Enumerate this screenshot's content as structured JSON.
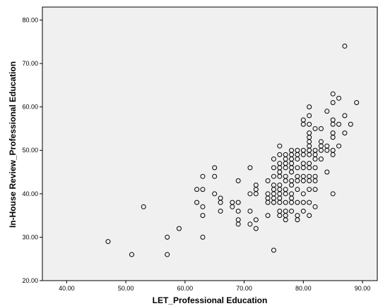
{
  "chart_data": {
    "type": "scatter",
    "title": "",
    "xlabel": "LET_Professional Education",
    "ylabel": "In-House Review_Professional Education",
    "xlim": [
      35.9,
      92.5
    ],
    "ylim": [
      20.0,
      83.0
    ],
    "xticks": [
      "40.00",
      "50.00",
      "60.00",
      "70.00",
      "80.00",
      "90.00"
    ],
    "yticks": [
      "20.00",
      "30.00",
      "40.00",
      "50.00",
      "60.00",
      "70.00",
      "80.00"
    ],
    "grid": false,
    "marker": "open-circle",
    "points": [
      [
        47,
        29
      ],
      [
        51,
        26
      ],
      [
        53,
        37
      ],
      [
        57,
        30
      ],
      [
        57,
        26
      ],
      [
        59,
        32
      ],
      [
        62,
        41
      ],
      [
        62,
        38
      ],
      [
        63,
        44
      ],
      [
        63,
        41
      ],
      [
        63,
        37
      ],
      [
        63,
        35
      ],
      [
        63,
        30
      ],
      [
        65,
        46
      ],
      [
        65,
        44
      ],
      [
        65,
        40
      ],
      [
        66,
        39
      ],
      [
        66,
        38
      ],
      [
        66,
        36
      ],
      [
        68,
        38
      ],
      [
        68,
        37
      ],
      [
        69,
        43
      ],
      [
        69,
        38
      ],
      [
        69,
        36
      ],
      [
        69,
        34
      ],
      [
        69,
        33
      ],
      [
        71,
        46
      ],
      [
        71,
        40
      ],
      [
        71,
        36
      ],
      [
        71,
        33
      ],
      [
        72,
        42
      ],
      [
        72,
        41
      ],
      [
        72,
        40
      ],
      [
        72,
        34
      ],
      [
        72,
        32
      ],
      [
        74,
        43
      ],
      [
        74,
        40
      ],
      [
        74,
        39
      ],
      [
        74,
        38
      ],
      [
        74,
        35
      ],
      [
        75,
        48
      ],
      [
        75,
        46
      ],
      [
        75,
        44
      ],
      [
        75,
        42
      ],
      [
        75,
        41
      ],
      [
        75,
        40
      ],
      [
        75,
        39
      ],
      [
        75,
        38
      ],
      [
        75,
        27
      ],
      [
        76,
        51
      ],
      [
        76,
        49
      ],
      [
        76,
        47
      ],
      [
        76,
        46
      ],
      [
        76,
        45
      ],
      [
        76,
        44
      ],
      [
        76,
        42
      ],
      [
        76,
        41
      ],
      [
        76,
        40
      ],
      [
        76,
        39
      ],
      [
        76,
        38
      ],
      [
        76,
        36
      ],
      [
        76,
        35
      ],
      [
        77,
        49
      ],
      [
        77,
        48
      ],
      [
        77,
        47
      ],
      [
        77,
        46
      ],
      [
        77,
        44
      ],
      [
        77,
        43
      ],
      [
        77,
        41
      ],
      [
        77,
        40
      ],
      [
        77,
        38
      ],
      [
        77,
        36
      ],
      [
        77,
        35
      ],
      [
        77,
        34
      ],
      [
        78,
        50
      ],
      [
        78,
        49
      ],
      [
        78,
        48
      ],
      [
        78,
        47
      ],
      [
        78,
        46
      ],
      [
        78,
        45
      ],
      [
        78,
        43
      ],
      [
        78,
        42
      ],
      [
        78,
        40
      ],
      [
        78,
        39
      ],
      [
        78,
        38
      ],
      [
        78,
        36
      ],
      [
        79,
        50
      ],
      [
        79,
        49
      ],
      [
        79,
        48
      ],
      [
        79,
        46
      ],
      [
        79,
        44
      ],
      [
        79,
        43
      ],
      [
        79,
        41
      ],
      [
        79,
        38
      ],
      [
        79,
        35
      ],
      [
        79,
        34
      ],
      [
        80,
        57
      ],
      [
        80,
        56
      ],
      [
        80,
        50
      ],
      [
        80,
        49
      ],
      [
        80,
        47
      ],
      [
        80,
        46
      ],
      [
        80,
        44
      ],
      [
        80,
        43
      ],
      [
        80,
        40
      ],
      [
        80,
        38
      ],
      [
        80,
        36
      ],
      [
        81,
        60
      ],
      [
        81,
        58
      ],
      [
        81,
        56
      ],
      [
        81,
        54
      ],
      [
        81,
        53
      ],
      [
        81,
        52
      ],
      [
        81,
        51
      ],
      [
        81,
        50
      ],
      [
        81,
        49
      ],
      [
        81,
        47
      ],
      [
        81,
        46
      ],
      [
        81,
        44
      ],
      [
        81,
        43
      ],
      [
        81,
        41
      ],
      [
        81,
        38
      ],
      [
        81,
        35
      ],
      [
        82,
        55
      ],
      [
        82,
        50
      ],
      [
        82,
        49
      ],
      [
        82,
        48
      ],
      [
        82,
        46
      ],
      [
        82,
        44
      ],
      [
        82,
        43
      ],
      [
        82,
        41
      ],
      [
        82,
        37
      ],
      [
        83,
        55
      ],
      [
        83,
        52
      ],
      [
        83,
        51
      ],
      [
        83,
        50
      ],
      [
        83,
        48
      ],
      [
        84,
        59
      ],
      [
        84,
        51
      ],
      [
        84,
        50
      ],
      [
        84,
        45
      ],
      [
        85,
        63
      ],
      [
        85,
        61
      ],
      [
        85,
        57
      ],
      [
        85,
        56
      ],
      [
        85,
        54
      ],
      [
        85,
        53
      ],
      [
        85,
        50
      ],
      [
        85,
        49
      ],
      [
        85,
        40
      ],
      [
        86,
        62
      ],
      [
        86,
        56
      ],
      [
        86,
        51
      ],
      [
        87,
        74
      ],
      [
        87,
        58
      ],
      [
        87,
        54
      ],
      [
        88,
        56
      ],
      [
        89,
        61
      ]
    ]
  }
}
